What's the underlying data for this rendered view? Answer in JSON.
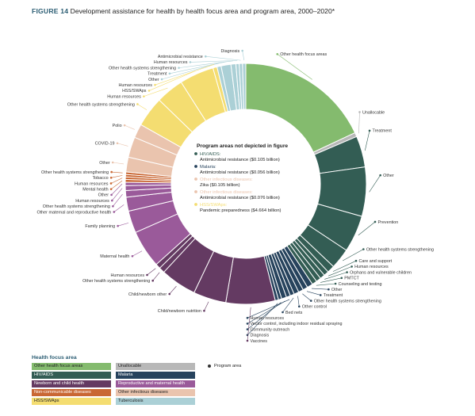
{
  "figure": {
    "number": "FIGURE 14",
    "title": "Development assistance for health by health focus area and program area, 2000–2020*"
  },
  "colors": {
    "other_health_focus_areas": "#84bb6e",
    "unallocable": "#b8b8b8",
    "hiv_aids": "#335d54",
    "malaria": "#27435d",
    "newborn_child": "#643a62",
    "reproductive_maternal": "#9a5a9a",
    "ncd": "#c96734",
    "other_infectious": "#eac4ae",
    "hss_swaps": "#f4dd71",
    "tuberculosis": "#abd0d6"
  },
  "chart_data": {
    "type": "donut",
    "legend_placement": "bottom",
    "legend_title": "Health focus area",
    "legend": [
      {
        "key": "other_health_focus_areas",
        "label": "Other health focus areas"
      },
      {
        "key": "unallocable",
        "label": "Unallocable"
      },
      {
        "key": "hiv_aids",
        "label": "HIV/AIDS"
      },
      {
        "key": "malaria",
        "label": "Malaria"
      },
      {
        "key": "newborn_child",
        "label": "Newborn and child health"
      },
      {
        "key": "reproductive_maternal",
        "label": "Reproductive and maternal health"
      },
      {
        "key": "ncd",
        "label": "Non-communicable diseases"
      },
      {
        "key": "other_infectious",
        "label": "Other infectious diseases"
      },
      {
        "key": "hss_swaps",
        "label": "HSS/SWAps"
      },
      {
        "key": "tuberculosis",
        "label": "Tuberculosis"
      }
    ],
    "legend_program_marker": "Program area",
    "segments": [
      {
        "label": "Other health focus areas",
        "value": 16.4,
        "area": "other_health_focus_areas"
      },
      {
        "label": "Unallocable",
        "value": 0.5,
        "area": "unallocable"
      },
      {
        "label": "Treatment",
        "value": 3.8,
        "area": "hiv_aids"
      },
      {
        "label": "Other",
        "value": 6.0,
        "area": "hiv_aids"
      },
      {
        "label": "Prevention",
        "value": 4.5,
        "area": "hiv_aids"
      },
      {
        "label": "Other health systems strengthening",
        "value": 2.5,
        "area": "hiv_aids"
      },
      {
        "label": "Care and support",
        "value": 0.9,
        "area": "hiv_aids"
      },
      {
        "label": "Human resources",
        "value": 0.6,
        "area": "hiv_aids"
      },
      {
        "label": "Orphans and vulnerable children",
        "value": 0.6,
        "area": "hiv_aids"
      },
      {
        "label": "PMTCT",
        "value": 0.6,
        "area": "hiv_aids"
      },
      {
        "label": "Counseling and testing",
        "value": 0.6,
        "area": "hiv_aids"
      },
      {
        "label": "Other",
        "value": 0.7,
        "area": "malaria"
      },
      {
        "label": "Treatment",
        "value": 0.6,
        "area": "malaria"
      },
      {
        "label": "Other health systems strengthening",
        "value": 0.6,
        "area": "malaria"
      },
      {
        "label": "Other control",
        "value": 0.6,
        "area": "malaria"
      },
      {
        "label": "Bed nets",
        "value": 0.5,
        "area": "malaria"
      },
      {
        "label": "Human resources",
        "value": 0.5,
        "area": "malaria"
      },
      {
        "label": "Vector control, including indoor residual spraying",
        "value": 0.6,
        "area": "malaria"
      },
      {
        "label": "Community outreach",
        "value": 0.4,
        "area": "malaria"
      },
      {
        "label": "Diagnosis",
        "value": 0.4,
        "area": "malaria"
      },
      {
        "label": "Vaccines",
        "value": 6.0,
        "area": "newborn_child"
      },
      {
        "label": "Child/newborn nutrition",
        "value": 4.0,
        "area": "newborn_child"
      },
      {
        "label": "Child/newborn other",
        "value": 4.4,
        "area": "newborn_child"
      },
      {
        "label": "Other health systems strengthening",
        "value": 0.7,
        "area": "newborn_child"
      },
      {
        "label": "Human resources",
        "value": 0.6,
        "area": "newborn_child"
      },
      {
        "label": "Maternal health",
        "value": 4.6,
        "area": "reproductive_maternal"
      },
      {
        "label": "Family planning",
        "value": 2.7,
        "area": "reproductive_maternal"
      },
      {
        "label": "Other maternal and reproductive health",
        "value": 1.7,
        "area": "reproductive_maternal"
      },
      {
        "label": "Other health systems strengthening",
        "value": 0.8,
        "area": "reproductive_maternal"
      },
      {
        "label": "Human resources",
        "value": 0.6,
        "area": "reproductive_maternal"
      },
      {
        "label": "Other",
        "value": 0.4,
        "area": "reproductive_maternal"
      },
      {
        "label": "Mental health",
        "value": 0.35,
        "area": "ncd"
      },
      {
        "label": "Human resources",
        "value": 0.3,
        "area": "ncd"
      },
      {
        "label": "Tobacco",
        "value": 0.3,
        "area": "ncd"
      },
      {
        "label": "Other health systems strengthening",
        "value": 0.3,
        "area": "ncd"
      },
      {
        "label": "Other",
        "value": 1.8,
        "area": "other_infectious"
      },
      {
        "label": "COVID-19",
        "value": 2.5,
        "area": "other_infectious"
      },
      {
        "label": "Polio",
        "value": 1.7,
        "area": "other_infectious"
      },
      {
        "label": "Other health systems strengthening",
        "value": 3.7,
        "area": "hss_swaps"
      },
      {
        "label": "Human resources",
        "value": 3.4,
        "area": "hss_swaps"
      },
      {
        "label": "HSS/SWAps",
        "value": 4.2,
        "area": "hss_swaps"
      },
      {
        "label": "Human resources",
        "value": 0.5,
        "area": "hss_swaps"
      },
      {
        "label": "Other",
        "value": 0.5,
        "area": "tuberculosis"
      },
      {
        "label": "Treatment",
        "value": 1.2,
        "area": "tuberculosis"
      },
      {
        "label": "Other health systems strengthening",
        "value": 0.6,
        "area": "tuberculosis"
      },
      {
        "label": "Human resources",
        "value": 0.4,
        "area": "tuberculosis"
      },
      {
        "label": "Antimicrobial resistance",
        "value": 0.4,
        "area": "tuberculosis"
      },
      {
        "label": "Diagnosis",
        "value": 0.4,
        "area": "tuberculosis"
      }
    ],
    "not_depicted": {
      "title": "Program areas not depicted in figure",
      "items": [
        {
          "area_label": "HIV/AIDS:",
          "area": "hiv_aids",
          "program": "Antimicrobial resistance ($0.105 billion)"
        },
        {
          "area_label": "Malaria:",
          "area": "malaria",
          "program": "Antimicrobial resistance ($0.056 billion)"
        },
        {
          "area_label": "Other infectious diseases:",
          "area": "other_infectious",
          "program": "Zika ($0.105 billion)"
        },
        {
          "area_label": "Other infectious diseases:",
          "area": "other_infectious",
          "program": "Antimicrobial resistance ($0.076 billion)"
        },
        {
          "area_label": "HSS/SWAps:",
          "area": "hss_swaps",
          "program": "Pandemic preparedness ($4.664 billion)"
        }
      ]
    }
  }
}
